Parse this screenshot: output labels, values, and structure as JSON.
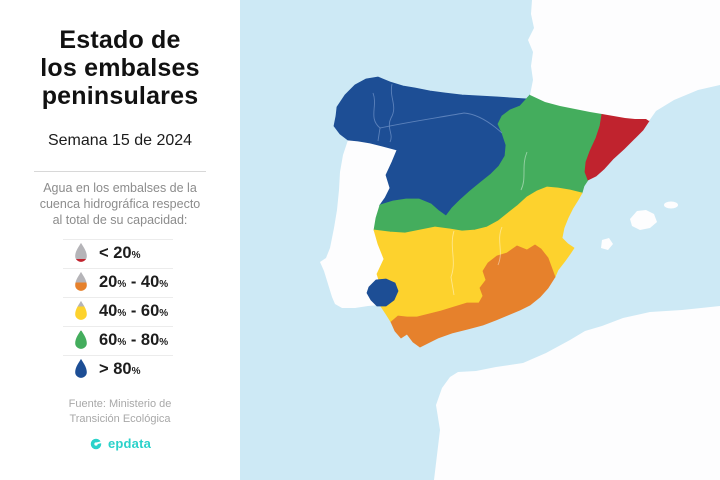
{
  "panel": {
    "title_lines": [
      "Estado de",
      "los embalses",
      "peninsulares"
    ],
    "subtitle": "Semana 15 de 2024",
    "description_lines": [
      "Agua en los embalses de la",
      "cuenca hidrográfica respecto",
      "al total de su capacidad:"
    ],
    "legend": {
      "droplet_empty_color": "#b5b4b8",
      "items": [
        {
          "parts": [
            "< 20",
            "%"
          ],
          "category": "< 20%",
          "color": "#c0232e",
          "fill_pct": 16
        },
        {
          "parts": [
            "20",
            "%",
            " - 40",
            "%"
          ],
          "category": "20% - 40%",
          "color": "#e6812c",
          "fill_pct": 44
        },
        {
          "parts": [
            "40",
            "%",
            " - 60",
            "%"
          ],
          "category": "40% - 60%",
          "color": "#fdd22d",
          "fill_pct": 71
        },
        {
          "parts": [
            "60",
            "%",
            " - 80",
            "%"
          ],
          "category": "60% - 80%",
          "color": "#44ad5d",
          "fill_pct": 93
        },
        {
          "parts": [
            "> 80",
            "%"
          ],
          "category": "> 80%",
          "color": "#1d4e95",
          "fill_pct": 100
        }
      ]
    },
    "source_lines": [
      "Fuente: Ministerio de",
      "Transición Ecológica"
    ],
    "brand": {
      "name": "epdata",
      "color": "#2bd2ca"
    }
  },
  "map": {
    "sea_color": "#cde9f5",
    "land_neutral_color": "#fdfdfe",
    "regions": [
      {
        "id": "north-basins",
        "category": "> 80%",
        "color": "#1d4e95"
      },
      {
        "id": "central-basins",
        "category": "60% - 80%",
        "color": "#44ad5d"
      },
      {
        "id": "catalonia-basins",
        "category": "< 20%",
        "color": "#c0232e"
      },
      {
        "id": "southern-basins",
        "category": "40% - 60%",
        "color": "#fdd22d"
      },
      {
        "id": "southeast-basins",
        "category": "20% - 40%",
        "color": "#e6812c"
      },
      {
        "id": "huelva-basin",
        "category": "> 80%",
        "color": "#1d4e95"
      }
    ]
  }
}
